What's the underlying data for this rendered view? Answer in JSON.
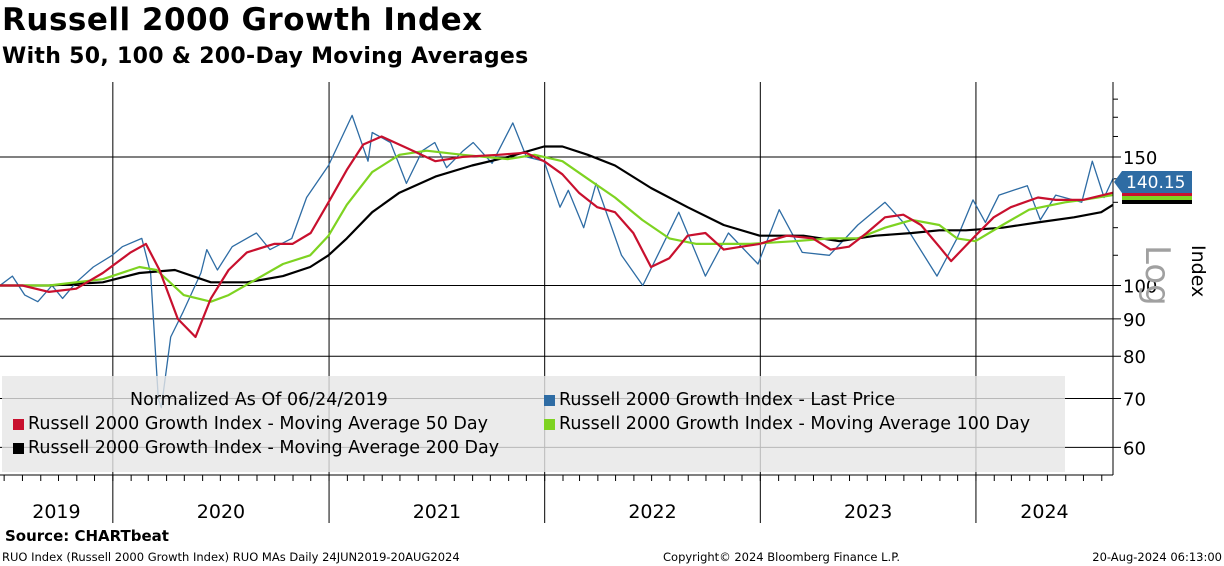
{
  "title": "Russell 2000 Growth Index",
  "subtitle": "With 50, 100 & 200-Day Moving Averages",
  "source": "Source: CHARTbeat",
  "footer": {
    "left": "RUO Index (Russell 2000 Growth Index) RUO MAs  Daily 24JUN2019-20AUG2024",
    "center": "Copyright© 2024 Bloomberg Finance L.P.",
    "right": "20-Aug-2024 06:13:00"
  },
  "log_label": "Log",
  "last_value_label": "140.15",
  "colors": {
    "last_price": "#2e6ca4",
    "ma50": "#c8102e",
    "ma100": "#7ed321",
    "ma200": "#000000",
    "badge": "#2e6ca4",
    "legend_bg": "#e6e6e6"
  },
  "chart_data": {
    "type": "line",
    "title": "Russell 2000 Growth Index",
    "subtitle": "With 50, 100 & 200-Day Moving Averages",
    "ylabel": "Index",
    "y_scale": "log",
    "ylim": [
      55,
      190
    ],
    "y_ticks": [
      60,
      70,
      80,
      90,
      100,
      150
    ],
    "xlim": [
      "2019-06-24",
      "2024-08-20"
    ],
    "x_tick_labels": [
      "2019",
      "2020",
      "2021",
      "2022",
      "2023",
      "2024"
    ],
    "grid": true,
    "legend_location": "bottom-left",
    "legend_note": "Normalized As Of 06/24/2019",
    "last_value": 140.15,
    "series": [
      {
        "name": "Russell 2000 Growth Index - Last Price",
        "color": "#2e6ca4",
        "points": [
          [
            "2019-06-24",
            100
          ],
          [
            "2019-07-15",
            103
          ],
          [
            "2019-08-05",
            97
          ],
          [
            "2019-08-27",
            95
          ],
          [
            "2019-09-20",
            100
          ],
          [
            "2019-10-08",
            96
          ],
          [
            "2019-10-31",
            101
          ],
          [
            "2019-11-29",
            106
          ],
          [
            "2019-12-31",
            110
          ],
          [
            "2020-01-17",
            113
          ],
          [
            "2020-02-19",
            116
          ],
          [
            "2020-03-05",
            104
          ],
          [
            "2020-03-18",
            70
          ],
          [
            "2020-03-23",
            68
          ],
          [
            "2020-04-08",
            85
          ],
          [
            "2020-04-29",
            92
          ],
          [
            "2020-05-29",
            104
          ],
          [
            "2020-06-08",
            112
          ],
          [
            "2020-06-26",
            105
          ],
          [
            "2020-07-21",
            113
          ],
          [
            "2020-08-31",
            118
          ],
          [
            "2020-09-23",
            112
          ],
          [
            "2020-10-30",
            116
          ],
          [
            "2020-11-24",
            132
          ],
          [
            "2020-12-31",
            146
          ],
          [
            "2021-01-20",
            158
          ],
          [
            "2021-02-09",
            171
          ],
          [
            "2021-03-08",
            148
          ],
          [
            "2021-03-15",
            162
          ],
          [
            "2021-04-15",
            157
          ],
          [
            "2021-05-12",
            138
          ],
          [
            "2021-06-08",
            153
          ],
          [
            "2021-06-29",
            157
          ],
          [
            "2021-07-19",
            145
          ],
          [
            "2021-08-16",
            153
          ],
          [
            "2021-09-02",
            157
          ],
          [
            "2021-10-04",
            147
          ],
          [
            "2021-11-08",
            167
          ],
          [
            "2021-12-01",
            150
          ],
          [
            "2021-12-31",
            148
          ],
          [
            "2022-01-27",
            128
          ],
          [
            "2022-02-10",
            135
          ],
          [
            "2022-03-08",
            120
          ],
          [
            "2022-03-29",
            138
          ],
          [
            "2022-05-11",
            110
          ],
          [
            "2022-06-16",
            100
          ],
          [
            "2022-08-16",
            126
          ],
          [
            "2022-09-30",
            103
          ],
          [
            "2022-11-08",
            118
          ],
          [
            "2022-12-28",
            107
          ],
          [
            "2023-02-02",
            127
          ],
          [
            "2023-03-13",
            111
          ],
          [
            "2023-04-28",
            110
          ],
          [
            "2023-06-15",
            121
          ],
          [
            "2023-07-31",
            130
          ],
          [
            "2023-08-31",
            122
          ],
          [
            "2023-10-27",
            103
          ],
          [
            "2023-11-30",
            116
          ],
          [
            "2023-12-27",
            131
          ],
          [
            "2024-01-17",
            122
          ],
          [
            "2024-02-09",
            133
          ],
          [
            "2024-03-28",
            137
          ],
          [
            "2024-04-19",
            123
          ],
          [
            "2024-05-15",
            133
          ],
          [
            "2024-06-28",
            130
          ],
          [
            "2024-07-16",
            148
          ],
          [
            "2024-08-05",
            132
          ],
          [
            "2024-08-20",
            140.15
          ]
        ]
      },
      {
        "name": "Russell 2000 Growth Index - Moving Average 50 Day",
        "color": "#c8102e",
        "points": [
          [
            "2019-06-24",
            100
          ],
          [
            "2019-08-01",
            100
          ],
          [
            "2019-09-15",
            98
          ],
          [
            "2019-10-31",
            99
          ],
          [
            "2019-12-15",
            104
          ],
          [
            "2020-01-31",
            111
          ],
          [
            "2020-02-26",
            114
          ],
          [
            "2020-03-20",
            105
          ],
          [
            "2020-04-20",
            90
          ],
          [
            "2020-05-20",
            85
          ],
          [
            "2020-06-15",
            96
          ],
          [
            "2020-07-15",
            105
          ],
          [
            "2020-08-15",
            111
          ],
          [
            "2020-09-30",
            114
          ],
          [
            "2020-10-31",
            114
          ],
          [
            "2020-12-01",
            118
          ],
          [
            "2020-12-31",
            130
          ],
          [
            "2021-01-31",
            144
          ],
          [
            "2021-02-28",
            156
          ],
          [
            "2021-03-31",
            160
          ],
          [
            "2021-05-15",
            154
          ],
          [
            "2021-06-30",
            148
          ],
          [
            "2021-08-15",
            150
          ],
          [
            "2021-10-15",
            151
          ],
          [
            "2021-11-30",
            152
          ],
          [
            "2021-12-31",
            148
          ],
          [
            "2022-01-31",
            142
          ],
          [
            "2022-02-28",
            134
          ],
          [
            "2022-03-31",
            128
          ],
          [
            "2022-04-30",
            126
          ],
          [
            "2022-05-31",
            118
          ],
          [
            "2022-06-30",
            106
          ],
          [
            "2022-07-31",
            109
          ],
          [
            "2022-08-31",
            117
          ],
          [
            "2022-09-30",
            118
          ],
          [
            "2022-10-31",
            112
          ],
          [
            "2022-11-30",
            113
          ],
          [
            "2022-12-31",
            114
          ],
          [
            "2023-02-15",
            117
          ],
          [
            "2023-03-31",
            116
          ],
          [
            "2023-04-30",
            112
          ],
          [
            "2023-05-31",
            113
          ],
          [
            "2023-06-30",
            118
          ],
          [
            "2023-07-31",
            124
          ],
          [
            "2023-08-31",
            125
          ],
          [
            "2023-09-30",
            121
          ],
          [
            "2023-10-31",
            113
          ],
          [
            "2023-11-20",
            108
          ],
          [
            "2023-12-31",
            117
          ],
          [
            "2024-01-31",
            124
          ],
          [
            "2024-02-29",
            128
          ],
          [
            "2024-04-15",
            132
          ],
          [
            "2024-05-15",
            131
          ],
          [
            "2024-06-30",
            131
          ],
          [
            "2024-08-20",
            134
          ]
        ]
      },
      {
        "name": "Russell 2000 Growth Index - Moving Average 100 Day",
        "color": "#7ed321",
        "points": [
          [
            "2019-06-24",
            100
          ],
          [
            "2019-09-15",
            100
          ],
          [
            "2019-12-15",
            102
          ],
          [
            "2020-02-15",
            106
          ],
          [
            "2020-03-15",
            105
          ],
          [
            "2020-04-30",
            97
          ],
          [
            "2020-06-15",
            95
          ],
          [
            "2020-07-15",
            97
          ],
          [
            "2020-08-31",
            102
          ],
          [
            "2020-10-15",
            107
          ],
          [
            "2020-11-30",
            110
          ],
          [
            "2020-12-31",
            117
          ],
          [
            "2021-01-31",
            129
          ],
          [
            "2021-03-15",
            143
          ],
          [
            "2021-04-30",
            151
          ],
          [
            "2021-06-15",
            153
          ],
          [
            "2021-08-15",
            151
          ],
          [
            "2021-10-31",
            149
          ],
          [
            "2021-12-15",
            151
          ],
          [
            "2022-01-31",
            148
          ],
          [
            "2022-03-15",
            140
          ],
          [
            "2022-04-30",
            132
          ],
          [
            "2022-06-15",
            123
          ],
          [
            "2022-07-31",
            116
          ],
          [
            "2022-09-15",
            114
          ],
          [
            "2022-10-31",
            114
          ],
          [
            "2022-12-15",
            114
          ],
          [
            "2023-02-28",
            115
          ],
          [
            "2023-04-30",
            116
          ],
          [
            "2023-06-15",
            116
          ],
          [
            "2023-07-31",
            120
          ],
          [
            "2023-09-15",
            123
          ],
          [
            "2023-10-31",
            121
          ],
          [
            "2023-11-30",
            116
          ],
          [
            "2023-12-31",
            115
          ],
          [
            "2024-02-15",
            121
          ],
          [
            "2024-03-31",
            127
          ],
          [
            "2024-05-31",
            130
          ],
          [
            "2024-06-30",
            131
          ],
          [
            "2024-08-20",
            133
          ]
        ]
      },
      {
        "name": "Russell 2000 Growth Index - Moving Average 200 Day",
        "color": "#000000",
        "points": [
          [
            "2019-06-24",
            100
          ],
          [
            "2019-09-15",
            100
          ],
          [
            "2019-12-15",
            101
          ],
          [
            "2020-02-15",
            104
          ],
          [
            "2020-04-15",
            105
          ],
          [
            "2020-06-15",
            101
          ],
          [
            "2020-08-15",
            101
          ],
          [
            "2020-10-15",
            103
          ],
          [
            "2020-11-30",
            106
          ],
          [
            "2020-12-31",
            110
          ],
          [
            "2021-01-31",
            116
          ],
          [
            "2021-03-15",
            126
          ],
          [
            "2021-04-30",
            134
          ],
          [
            "2021-06-30",
            141
          ],
          [
            "2021-08-31",
            146
          ],
          [
            "2021-10-31",
            150
          ],
          [
            "2021-12-31",
            155
          ],
          [
            "2022-01-31",
            155
          ],
          [
            "2022-03-15",
            151
          ],
          [
            "2022-04-30",
            146
          ],
          [
            "2022-06-30",
            136
          ],
          [
            "2022-08-31",
            128
          ],
          [
            "2022-10-31",
            121
          ],
          [
            "2022-12-31",
            117
          ],
          [
            "2023-03-15",
            117
          ],
          [
            "2023-05-15",
            115
          ],
          [
            "2023-07-15",
            117
          ],
          [
            "2023-09-15",
            118
          ],
          [
            "2023-10-31",
            119
          ],
          [
            "2023-12-15",
            119
          ],
          [
            "2024-02-15",
            120
          ],
          [
            "2024-04-15",
            122
          ],
          [
            "2024-06-15",
            124
          ],
          [
            "2024-07-31",
            126
          ],
          [
            "2024-08-20",
            129
          ]
        ]
      }
    ]
  }
}
